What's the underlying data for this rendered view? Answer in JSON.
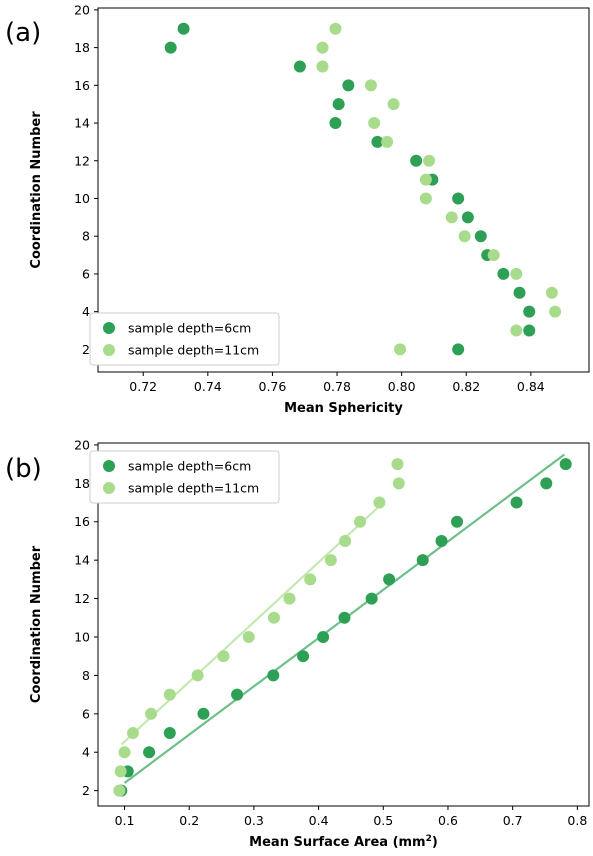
{
  "colors": {
    "dark": "#2ea055",
    "light": "#a8dc8c",
    "fit_dark": "#6ec08a",
    "fit_light": "#c6e8b0"
  },
  "chart_data": [
    {
      "panel_label": "(a)",
      "type": "scatter",
      "xlabel": "Mean Sphericity",
      "ylabel": "Coordination Number",
      "xlim": [
        0.706,
        0.858
      ],
      "ylim": [
        0.8,
        20.1
      ],
      "xticks": [
        "0.72",
        "0.74",
        "0.76",
        "0.78",
        "0.80",
        "0.82",
        "0.84"
      ],
      "yticks": [
        "2",
        "4",
        "6",
        "8",
        "10",
        "12",
        "14",
        "16",
        "18",
        "20"
      ],
      "legend": "bottom-left",
      "grid": false,
      "series": [
        {
          "name": "sample depth=6cm",
          "color": "#2ea055",
          "points": [
            [
              0.8175,
              2
            ],
            [
              0.8395,
              3
            ],
            [
              0.8395,
              4
            ],
            [
              0.8365,
              5
            ],
            [
              0.8315,
              6
            ],
            [
              0.8245,
              8
            ],
            [
              0.8265,
              7
            ],
            [
              0.8205,
              9
            ],
            [
              0.8175,
              10
            ],
            [
              0.8095,
              11
            ],
            [
              0.8045,
              12
            ],
            [
              0.7925,
              13
            ],
            [
              0.7795,
              14
            ],
            [
              0.7805,
              15
            ],
            [
              0.7835,
              16
            ],
            [
              0.7685,
              17
            ],
            [
              0.7285,
              18
            ],
            [
              0.7325,
              19
            ]
          ]
        },
        {
          "name": "sample depth=11cm",
          "color": "#a8dc8c",
          "points": [
            [
              0.7995,
              2
            ],
            [
              0.8355,
              3
            ],
            [
              0.8475,
              4
            ],
            [
              0.8465,
              5
            ],
            [
              0.8355,
              6
            ],
            [
              0.8285,
              7
            ],
            [
              0.8195,
              8
            ],
            [
              0.8155,
              9
            ],
            [
              0.8075,
              10
            ],
            [
              0.8075,
              11
            ],
            [
              0.8085,
              12
            ],
            [
              0.7955,
              13
            ],
            [
              0.7915,
              14
            ],
            [
              0.7975,
              15
            ],
            [
              0.7905,
              16
            ],
            [
              0.7755,
              17
            ],
            [
              0.7755,
              18
            ],
            [
              0.7795,
              19
            ]
          ]
        }
      ]
    },
    {
      "panel_label": "(b)",
      "type": "scatter",
      "xlabel": "Mean Surface Area (mm",
      "xlabel_sup": "2",
      "xlabel_end": ")",
      "ylabel": "Coordination Number",
      "xlim": [
        0.059,
        0.818
      ],
      "ylim": [
        1.2,
        20.1
      ],
      "xticks": [
        "0.1",
        "0.2",
        "0.3",
        "0.4",
        "0.5",
        "0.6",
        "0.7",
        "0.8"
      ],
      "yticks": [
        "2",
        "4",
        "6",
        "8",
        "10",
        "12",
        "14",
        "16",
        "18",
        "20"
      ],
      "legend": "top-left",
      "grid": false,
      "series": [
        {
          "name": "sample depth=6cm",
          "color": "#2ea055",
          "points": [
            [
              0.095,
              2
            ],
            [
              0.105,
              3
            ],
            [
              0.138,
              4
            ],
            [
              0.17,
              5
            ],
            [
              0.222,
              6
            ],
            [
              0.274,
              7
            ],
            [
              0.33,
              8
            ],
            [
              0.376,
              9
            ],
            [
              0.407,
              10
            ],
            [
              0.44,
              11
            ],
            [
              0.509,
              13
            ],
            [
              0.482,
              12
            ],
            [
              0.561,
              14
            ],
            [
              0.59,
              15
            ],
            [
              0.614,
              16
            ],
            [
              0.706,
              17
            ],
            [
              0.752,
              18
            ],
            [
              0.782,
              19
            ]
          ],
          "fit": [
            [
              0.1,
              2.4
            ],
            [
              0.78,
              19.5
            ]
          ]
        },
        {
          "name": "sample depth=11cm",
          "color": "#a8dc8c",
          "points": [
            [
              0.092,
              2
            ],
            [
              0.094,
              3
            ],
            [
              0.1,
              4
            ],
            [
              0.113,
              5
            ],
            [
              0.141,
              6
            ],
            [
              0.17,
              7
            ],
            [
              0.213,
              8
            ],
            [
              0.253,
              9
            ],
            [
              0.292,
              10
            ],
            [
              0.331,
              11
            ],
            [
              0.355,
              12
            ],
            [
              0.387,
              13
            ],
            [
              0.419,
              14
            ],
            [
              0.441,
              15
            ],
            [
              0.464,
              16
            ],
            [
              0.494,
              17
            ],
            [
              0.524,
              18
            ],
            [
              0.522,
              19
            ]
          ],
          "fit": [
            [
              0.095,
              4.4
            ],
            [
              0.5,
              17.0
            ]
          ]
        }
      ]
    }
  ]
}
